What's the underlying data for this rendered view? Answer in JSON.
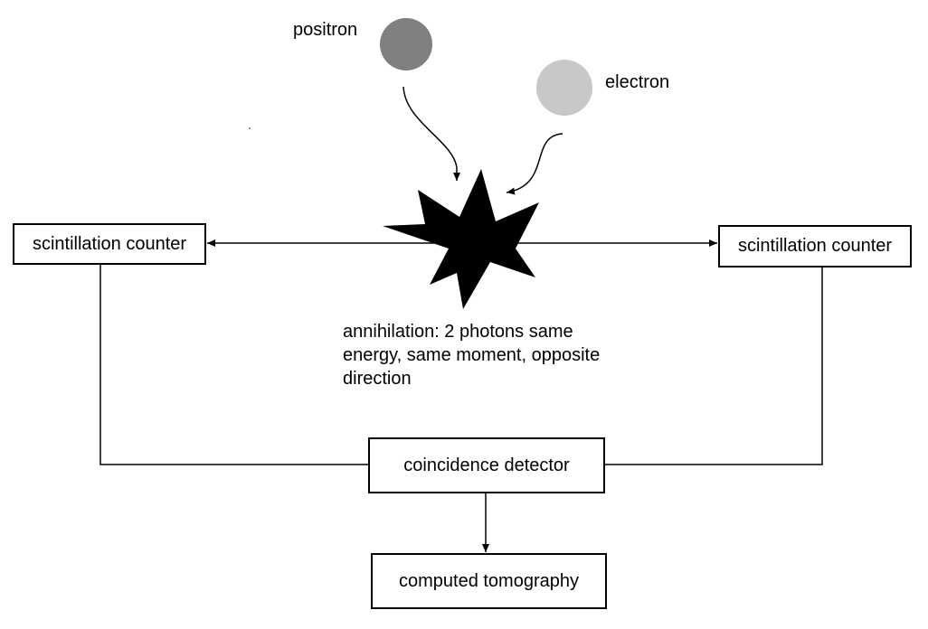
{
  "particles": {
    "positron": {
      "label": "positron",
      "color": "#808080"
    },
    "electron": {
      "label": "electron",
      "color": "#c8c8c8"
    }
  },
  "annihilation": {
    "lines": [
      "annihilation: 2 photons same",
      "energy, same moment, opposite",
      "direction"
    ]
  },
  "boxes": {
    "left_counter": "scintillation counter",
    "right_counter": "scintillation counter",
    "coincidence": "coincidence detector",
    "tomography": "computed tomography"
  },
  "colors": {
    "stroke": "#000000",
    "flash": "#000000"
  }
}
